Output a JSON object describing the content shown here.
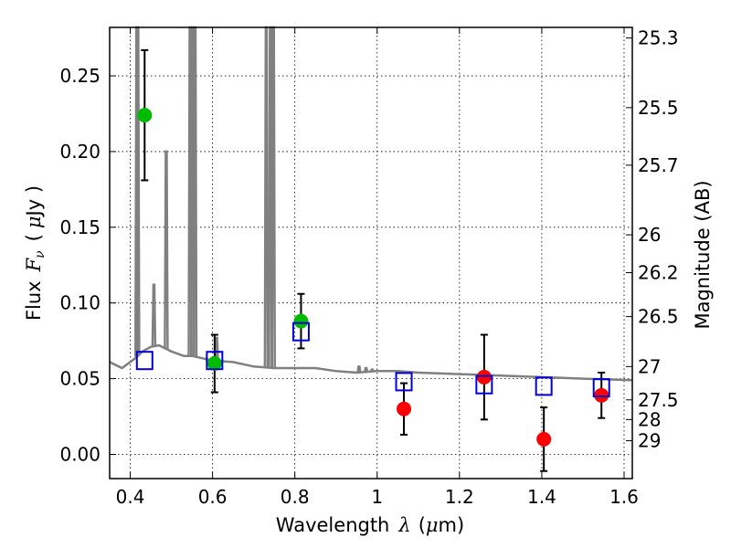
{
  "chart_data": {
    "type": "scatter",
    "title": "",
    "xlabel": "Wavelength",
    "xlabel_symbol": "λ",
    "xlabel_unit_open": "(",
    "xlabel_unit_mu": "μ",
    "xlabel_unit_rest": "m)",
    "ylabel": "Flux",
    "ylabel_symbol": "F",
    "ylabel_symbol_sub": "ν",
    "ylabel_unit_open": "(",
    "ylabel_unit_mu": "μ",
    "ylabel_unit_rest": "Jy )",
    "y2label": "Magnitude (AB)",
    "xlim": [
      0.35,
      1.62
    ],
    "ylim": [
      -0.016,
      0.282
    ],
    "grid": true,
    "x_ticks": [
      0.4,
      0.6,
      0.8,
      1.0,
      1.2,
      1.4,
      1.6
    ],
    "x_tick_labels": [
      "0.4",
      "0.6",
      "0.8",
      "1",
      "1.2",
      "1.4",
      "1.6"
    ],
    "y_ticks": [
      0.0,
      0.05,
      0.1,
      0.15,
      0.2,
      0.25
    ],
    "y_tick_labels": [
      "0.00",
      "0.05",
      "0.10",
      "0.15",
      "0.20",
      "0.25"
    ],
    "y2_ticks": [
      {
        "label": "25.3",
        "flux": 0.275
      },
      {
        "label": "25.5",
        "flux": 0.229
      },
      {
        "label": "25.7",
        "flux": 0.191
      },
      {
        "label": "26",
        "flux": 0.145
      },
      {
        "label": "26.2",
        "flux": 0.12
      },
      {
        "label": "26.5",
        "flux": 0.091
      },
      {
        "label": "27",
        "flux": 0.058
      },
      {
        "label": "27.5",
        "flux": 0.036
      },
      {
        "label": "28",
        "flux": 0.023
      },
      {
        "label": "29",
        "flux": 0.009
      }
    ],
    "model_spectrum": {
      "color": "#808080",
      "continuum": [
        [
          0.35,
          0.061
        ],
        [
          0.38,
          0.057
        ],
        [
          0.41,
          0.063
        ],
        [
          0.43,
          0.068
        ],
        [
          0.45,
          0.071
        ],
        [
          0.47,
          0.072
        ],
        [
          0.5,
          0.068
        ],
        [
          0.53,
          0.065
        ],
        [
          0.55,
          0.065
        ],
        [
          0.6,
          0.062
        ],
        [
          0.65,
          0.061
        ],
        [
          0.7,
          0.058
        ],
        [
          0.75,
          0.057
        ],
        [
          0.8,
          0.057
        ],
        [
          0.85,
          0.057
        ],
        [
          0.9,
          0.055
        ],
        [
          0.95,
          0.054
        ],
        [
          1.0,
          0.055
        ],
        [
          1.05,
          0.055
        ],
        [
          1.1,
          0.054
        ],
        [
          1.2,
          0.053
        ],
        [
          1.3,
          0.052
        ],
        [
          1.4,
          0.051
        ],
        [
          1.5,
          0.05
        ],
        [
          1.62,
          0.049
        ]
      ],
      "emission_lines": [
        {
          "x": 0.4161,
          "peak": 0.282
        },
        {
          "x": 0.4185,
          "peak": 0.282
        },
        {
          "x": 0.4575,
          "peak": 0.112
        },
        {
          "x": 0.4875,
          "peak": 0.2
        },
        {
          "x": 0.5455,
          "peak": 0.282
        },
        {
          "x": 0.5515,
          "peak": 0.282
        },
        {
          "x": 0.5575,
          "peak": 0.282
        },
        {
          "x": 0.61,
          "peak": 0.077
        },
        {
          "x": 0.7305,
          "peak": 0.282
        },
        {
          "x": 0.7405,
          "peak": 0.282
        },
        {
          "x": 0.748,
          "peak": 0.282
        },
        {
          "x": 0.956,
          "peak": 0.058
        },
        {
          "x": 0.973,
          "peak": 0.057
        },
        {
          "x": 0.988,
          "peak": 0.056
        }
      ]
    },
    "series": [
      {
        "marker": "circle",
        "color": "#00bb00",
        "points": [
          {
            "x": 0.435,
            "y": 0.224,
            "yerr": 0.043
          },
          {
            "x": 0.605,
            "y": 0.06,
            "yerr": 0.019
          },
          {
            "x": 0.815,
            "y": 0.088,
            "yerr": 0.018
          }
        ]
      },
      {
        "marker": "circle",
        "color": "#ff0000",
        "points": [
          {
            "x": 1.065,
            "y": 0.03,
            "yerr": 0.017
          },
          {
            "x": 1.26,
            "y": 0.051,
            "yerr": 0.028
          },
          {
            "x": 1.405,
            "y": 0.01,
            "yerr": 0.021
          },
          {
            "x": 1.545,
            "y": 0.039,
            "yerr": 0.015
          }
        ]
      },
      {
        "marker": "open-square",
        "color": "#0000dd",
        "points": [
          {
            "x": 0.435,
            "y": 0.062
          },
          {
            "x": 0.605,
            "y": 0.062
          },
          {
            "x": 0.815,
            "y": 0.081
          },
          {
            "x": 1.065,
            "y": 0.048
          },
          {
            "x": 1.26,
            "y": 0.046
          },
          {
            "x": 1.405,
            "y": 0.045
          },
          {
            "x": 1.545,
            "y": 0.044
          }
        ]
      }
    ]
  }
}
